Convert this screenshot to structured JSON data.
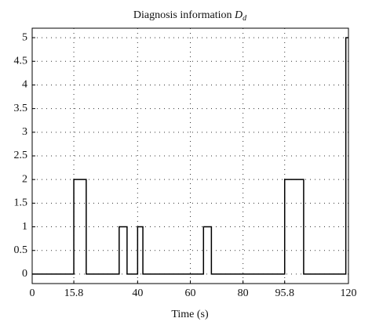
{
  "chart_data": {
    "type": "line",
    "title": "Diagnosis information",
    "title_symbol": "D",
    "title_subscript": "d",
    "x_label": "Time (s)",
    "x": [
      0,
      15.8,
      15.8,
      20.5,
      20.5,
      33,
      33,
      36,
      36,
      40,
      40,
      42,
      42,
      65,
      65,
      68,
      68,
      95.8,
      95.8,
      103,
      103,
      119,
      119,
      120
    ],
    "values": [
      0,
      0,
      2,
      2,
      0,
      0,
      1,
      1,
      0,
      0,
      1,
      1,
      0,
      0,
      1,
      1,
      0,
      0,
      2,
      2,
      0,
      0,
      5,
      5
    ],
    "color": "#000000",
    "xlim": [
      0,
      120
    ],
    "xticks": [
      0,
      15.8,
      40,
      60,
      80,
      95.8,
      120
    ],
    "ylim": [
      -0.2,
      5.2
    ],
    "yticks": [
      0,
      0.5,
      1,
      1.5,
      2,
      2.5,
      3,
      3.5,
      4,
      4.5,
      5
    ],
    "grid": true
  }
}
